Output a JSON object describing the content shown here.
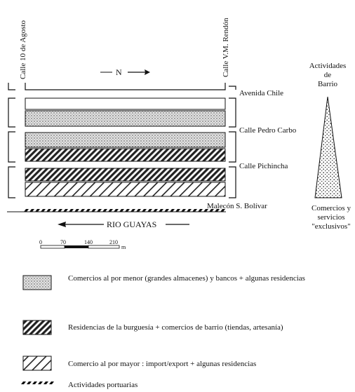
{
  "streets": {
    "calle_10_agosto": "Calle 10 de Agosto",
    "calle_rendon": "Calle V.M. Rendón",
    "avenida_chile": "Avenida Chile",
    "calle_pedro_carbo": "Calle Pedro Carbo",
    "calle_pichincha": "Calle Pichincha",
    "malecon": "Malecón S. Bolívar",
    "river": "RIO GUAYAS"
  },
  "north_label": "N",
  "scale": {
    "ticks": [
      "0",
      "70",
      "140",
      "210"
    ],
    "unit": "m"
  },
  "gradient": {
    "top": [
      "Actividades",
      "de",
      "Barrio"
    ],
    "bottom": [
      "Comercios y",
      "servicios",
      "\"exclusivos\""
    ]
  },
  "legend": [
    {
      "pattern": "dots",
      "text": "Comercios al por menor (grandes almacenes) y bancos + algunas residencias"
    },
    {
      "pattern": "dense-hatch",
      "text": "Residencias de la burguesía + comercios de barrio (tiendas, artesanía)"
    },
    {
      "pattern": "light-hatch",
      "text": "Comercio al por mayor : import/export + algunas residencias"
    },
    {
      "pattern": "dashes",
      "text": "Actividades portuarias"
    }
  ],
  "colors": {
    "ink": "#111111",
    "dots_bg": "#e6e6e6"
  }
}
